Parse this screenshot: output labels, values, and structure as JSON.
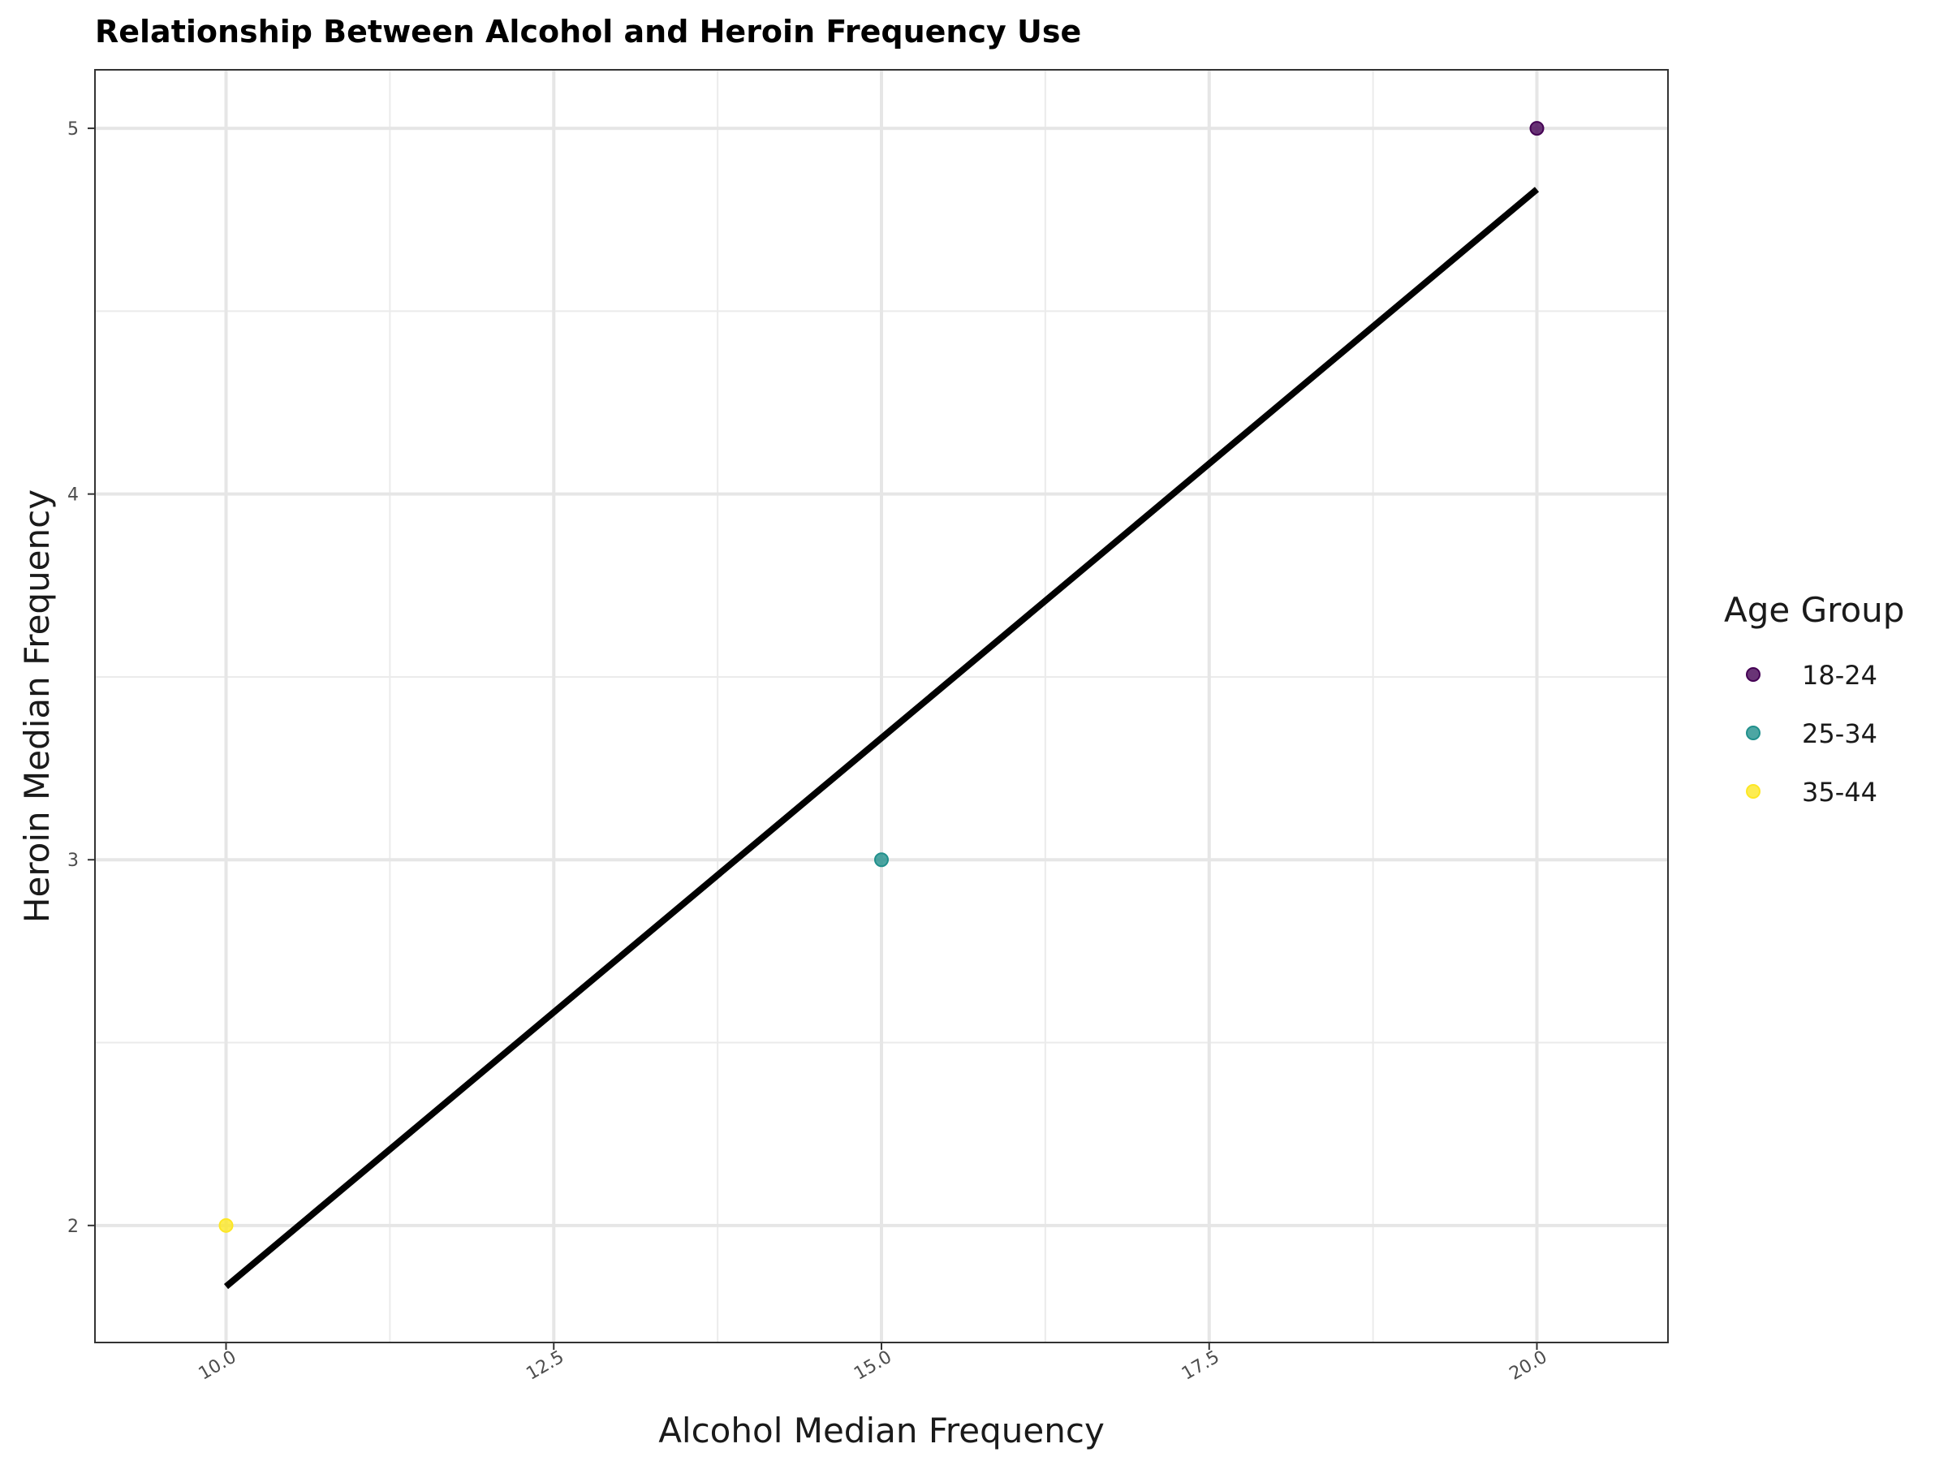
{
  "chart_data": {
    "type": "scatter",
    "title": "Relationship Between Alcohol and Heroin Frequency Use",
    "xlabel": "Alcohol Median Frequency",
    "ylabel": "Heroin Median Frequency",
    "xlim": [
      9.0,
      21.0
    ],
    "ylim": [
      1.68,
      5.16
    ],
    "x_ticks": [
      10.0,
      12.5,
      15.0,
      17.5,
      20.0
    ],
    "x_tick_labels": [
      "10.0",
      "12.5",
      "15.0",
      "17.5",
      "20.0"
    ],
    "y_ticks": [
      2,
      3,
      4,
      5
    ],
    "y_tick_labels": [
      "2",
      "3",
      "4",
      "5"
    ],
    "grid": true,
    "legend": {
      "title": "Age Group",
      "position": "right"
    },
    "series": [
      {
        "name": "18-24",
        "color": "#440154",
        "points": [
          {
            "x": 20,
            "y": 5
          }
        ]
      },
      {
        "name": "25-34",
        "color": "#21908C",
        "points": [
          {
            "x": 15,
            "y": 3
          }
        ]
      },
      {
        "name": "35-44",
        "color": "#FDE725",
        "points": [
          {
            "x": 10,
            "y": 2
          }
        ]
      }
    ],
    "trend_line": {
      "type": "linear",
      "color": "#000000",
      "start": {
        "x": 10,
        "y": 1.833
      },
      "end": {
        "x": 20,
        "y": 4.833
      }
    }
  }
}
